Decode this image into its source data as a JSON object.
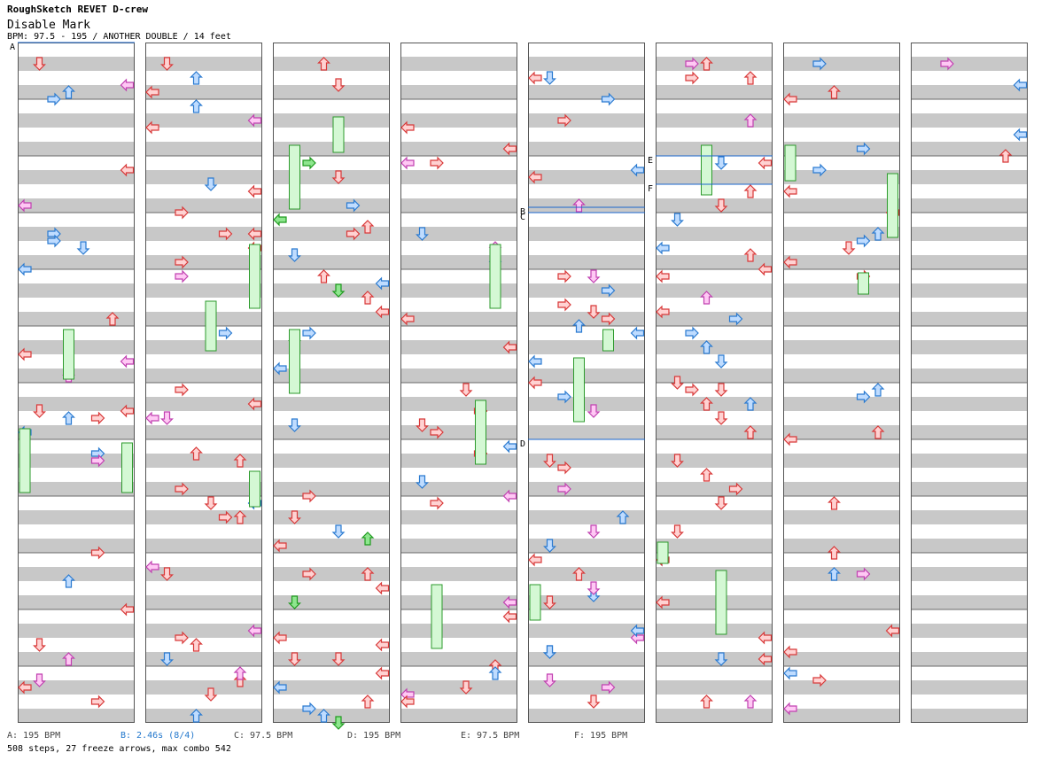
{
  "header": {
    "title": "RoughSketch REVET D-crew",
    "subtitle": "Disable Mark",
    "info": "BPM: 97.5 - 195 / ANOTHER DOUBLE / 14 feet"
  },
  "colors": {
    "stripe": "#c8c8c8",
    "red_fill": "#ffd2d2",
    "red_stroke": "#d83838",
    "blue_fill": "#bfdcff",
    "blue_stroke": "#2a7ad0",
    "green_fill": "#8ee68e",
    "green_stroke": "#1e9a1e",
    "pink_fill": "#ffc8f4",
    "pink_stroke": "#c040b0",
    "freeze_fill": "#d4f8d4",
    "freeze_stroke": "#2c9a2c",
    "marker": "#1a66cc"
  },
  "markers": [
    "A",
    "B",
    "C",
    "D",
    "E",
    "F"
  ],
  "legend": [
    {
      "text": "A: 195 BPM",
      "kind": "bpm"
    },
    {
      "text": "B: 2.46s (8/4)",
      "kind": "stop"
    },
    {
      "text": "C: 97.5 BPM",
      "kind": "bpm"
    },
    {
      "text": "D: 195 BPM",
      "kind": "bpm"
    },
    {
      "text": "E: 97.5 BPM",
      "kind": "bpm"
    },
    {
      "text": "F: 195 BPM",
      "kind": "bpm"
    }
  ],
  "footer": "508 steps, 27 freeze arrows, max combo 542",
  "chart_data": {
    "type": "step-chart",
    "title": "Disable Mark",
    "song": "RoughSketch REVET D-crew",
    "difficulty": "ANOTHER DOUBLE",
    "feet": 14,
    "bpm_range": [
      97.5,
      195
    ],
    "columns": 8,
    "measures_per_column": 12,
    "lanes": 8,
    "steps": 508,
    "freeze_arrows": 27,
    "max_combo": 542,
    "events": [
      {
        "label": "A",
        "type": "bpm",
        "value": 195,
        "column": 0,
        "measure": 0
      },
      {
        "label": "B",
        "type": "stop",
        "value": "2.46s (8/4)",
        "column": 4,
        "measure": 2.9
      },
      {
        "label": "C",
        "type": "bpm",
        "value": 97.5,
        "column": 4,
        "measure": 3.0
      },
      {
        "label": "D",
        "type": "bpm",
        "value": 195,
        "column": 4,
        "measure": 7.0
      },
      {
        "label": "E",
        "type": "bpm",
        "value": 97.5,
        "column": 5,
        "measure": 2.0
      },
      {
        "label": "F",
        "type": "bpm",
        "value": 195,
        "column": 5,
        "measure": 2.5
      }
    ]
  }
}
